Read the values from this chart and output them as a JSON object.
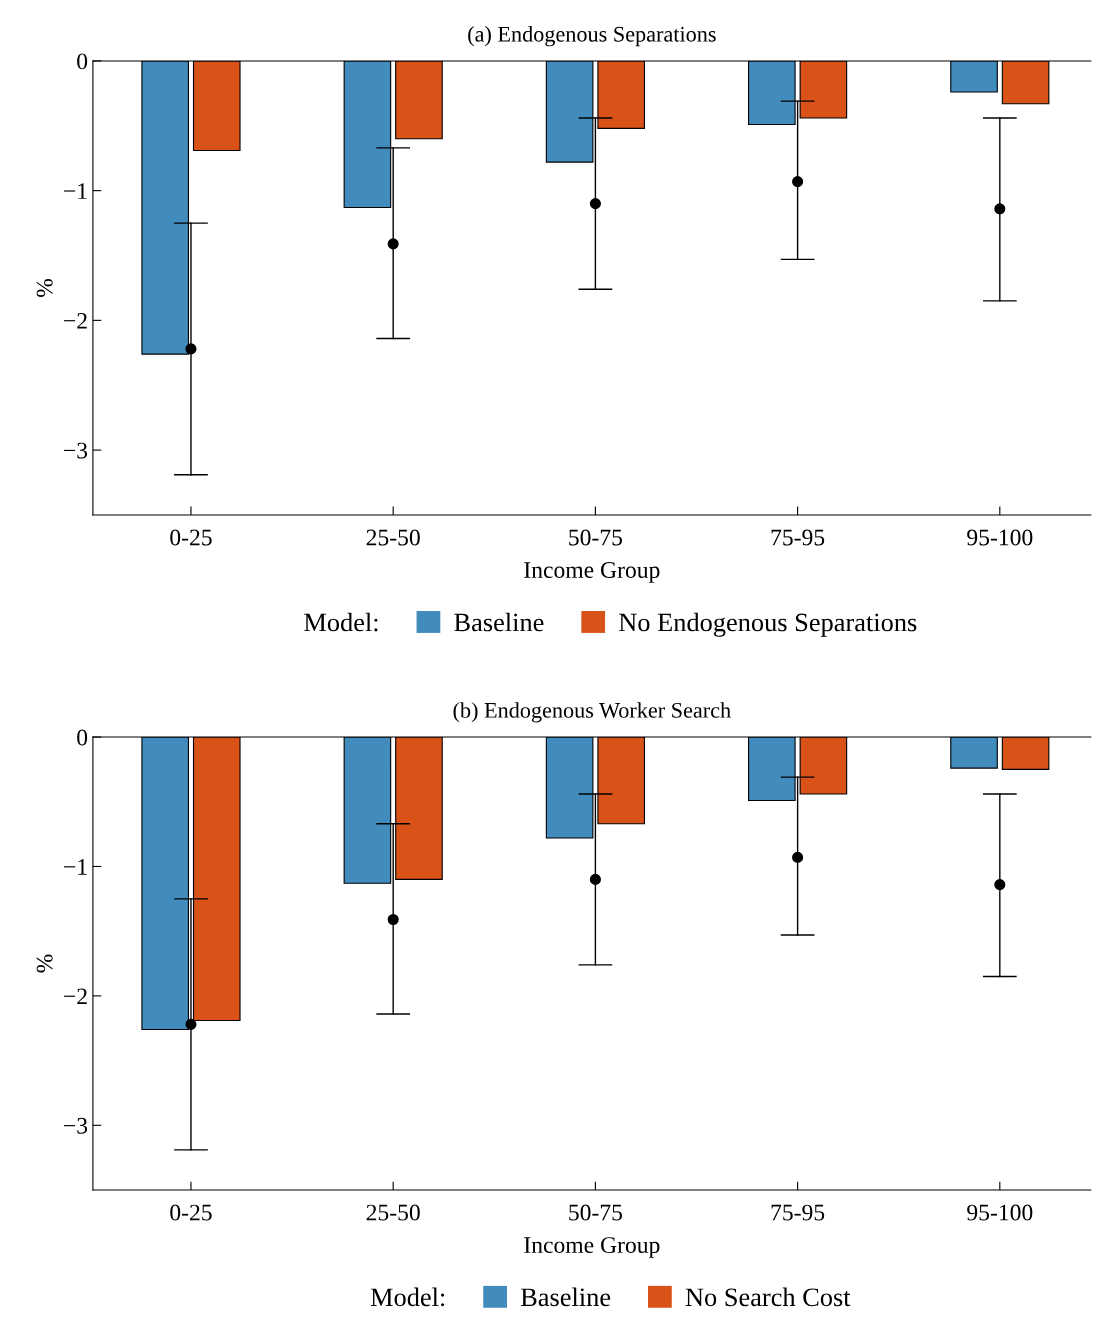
{
  "chart_data": [
    {
      "type": "bar",
      "title": "(a) Endogenous Separations",
      "xlabel": "Income Group",
      "ylabel": "%",
      "legend_title": "Model:",
      "categories": [
        "0-25",
        "25-50",
        "50-75",
        "75-95",
        "95-100"
      ],
      "ylim": [
        -3.5,
        0
      ],
      "yticks": [
        {
          "value": 0,
          "label": "0"
        },
        {
          "value": -1,
          "label": "−1"
        },
        {
          "value": -2,
          "label": "−2"
        },
        {
          "value": -3,
          "label": "−3"
        }
      ],
      "legend": "bottom",
      "grid": false,
      "series": [
        {
          "name": "Baseline",
          "color": "#428bbd",
          "values": [
            -2.26,
            -1.13,
            -0.78,
            -0.49,
            -0.24
          ]
        },
        {
          "name": "No Endogenous Separations",
          "color": "#d95319",
          "values": [
            -0.69,
            -0.6,
            -0.52,
            -0.44,
            -0.33
          ]
        },
        {
          "type": "scatter",
          "color": "#000000",
          "marker": "circle",
          "x": [
            "0-25",
            "25-50",
            "50-75",
            "75-95",
            "95-100"
          ],
          "values": [
            -2.22,
            -1.41,
            -1.1,
            -0.93,
            -1.14
          ],
          "errors": [
            [
              -3.19,
              -1.25
            ],
            [
              -2.14,
              -0.67
            ],
            [
              -1.76,
              -0.44
            ],
            [
              -1.53,
              -0.31
            ],
            [
              -1.85,
              -0.44
            ]
          ]
        }
      ]
    },
    {
      "type": "bar",
      "title": "(b) Endogenous Worker Search",
      "xlabel": "Income Group",
      "ylabel": "%",
      "legend_title": "Model:",
      "categories": [
        "0-25",
        "25-50",
        "50-75",
        "75-95",
        "95-100"
      ],
      "ylim": [
        -3.5,
        0
      ],
      "yticks": [
        {
          "value": 0,
          "label": "0"
        },
        {
          "value": -1,
          "label": "−1"
        },
        {
          "value": -2,
          "label": "−2"
        },
        {
          "value": -3,
          "label": "−3"
        }
      ],
      "legend": "bottom",
      "grid": false,
      "series": [
        {
          "name": "Baseline",
          "color": "#428bbd",
          "values": [
            -2.26,
            -1.13,
            -0.78,
            -0.49,
            -0.24
          ]
        },
        {
          "name": "No Search Cost",
          "color": "#d95319",
          "values": [
            -2.19,
            -1.1,
            -0.67,
            -0.44,
            -0.25
          ]
        },
        {
          "type": "scatter",
          "color": "#000000",
          "marker": "circle",
          "x": [
            "0-25",
            "25-50",
            "50-75",
            "75-95",
            "95-100"
          ],
          "values": [
            -2.22,
            -1.41,
            -1.1,
            -0.93,
            -1.14
          ],
          "errors": [
            [
              -3.19,
              -1.25
            ],
            [
              -2.14,
              -0.67
            ],
            [
              -1.76,
              -0.44
            ],
            [
              -1.53,
              -0.31
            ],
            [
              -1.85,
              -0.44
            ]
          ]
        }
      ]
    }
  ]
}
